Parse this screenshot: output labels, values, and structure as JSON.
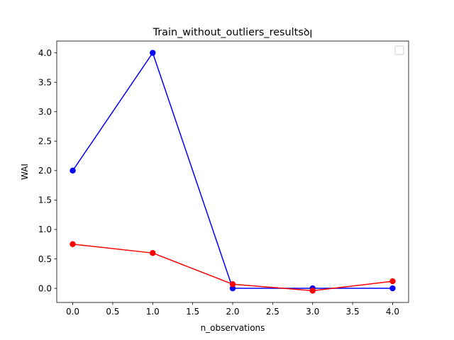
{
  "chart_data": {
    "type": "line",
    "title": "Train_without_outliers_resultsꝺꞁ",
    "xlabel": "n_observations",
    "ylabel": "WAI",
    "x": [
      0.0,
      1.0,
      2.0,
      3.0,
      4.0
    ],
    "series": [
      {
        "color": "#0000ff",
        "marker": "circle",
        "values": [
          2.0,
          4.0,
          0.0,
          0.0,
          0.0
        ]
      },
      {
        "color": "#ff0000",
        "marker": "circle",
        "values": [
          0.75,
          0.6,
          0.07,
          -0.04,
          0.12
        ]
      }
    ],
    "xlim": [
      -0.2,
      4.2
    ],
    "ylim": [
      -0.24,
      4.2
    ],
    "xticks": [
      0.0,
      0.5,
      1.0,
      1.5,
      2.0,
      2.5,
      3.0,
      3.5,
      4.0
    ],
    "xtick_labels": [
      "0.0",
      "0.5",
      "1.0",
      "1.5",
      "2.0",
      "2.5",
      "3.0",
      "3.5",
      "4.0"
    ],
    "yticks": [
      0.0,
      0.5,
      1.0,
      1.5,
      2.0,
      2.5,
      3.0,
      3.5,
      4.0
    ],
    "ytick_labels": [
      "0.0",
      "0.5",
      "1.0",
      "1.5",
      "2.0",
      "2.5",
      "3.0",
      "3.5",
      "4.0"
    ],
    "grid": false,
    "legend": {
      "placement": "upper right",
      "entries": []
    }
  }
}
